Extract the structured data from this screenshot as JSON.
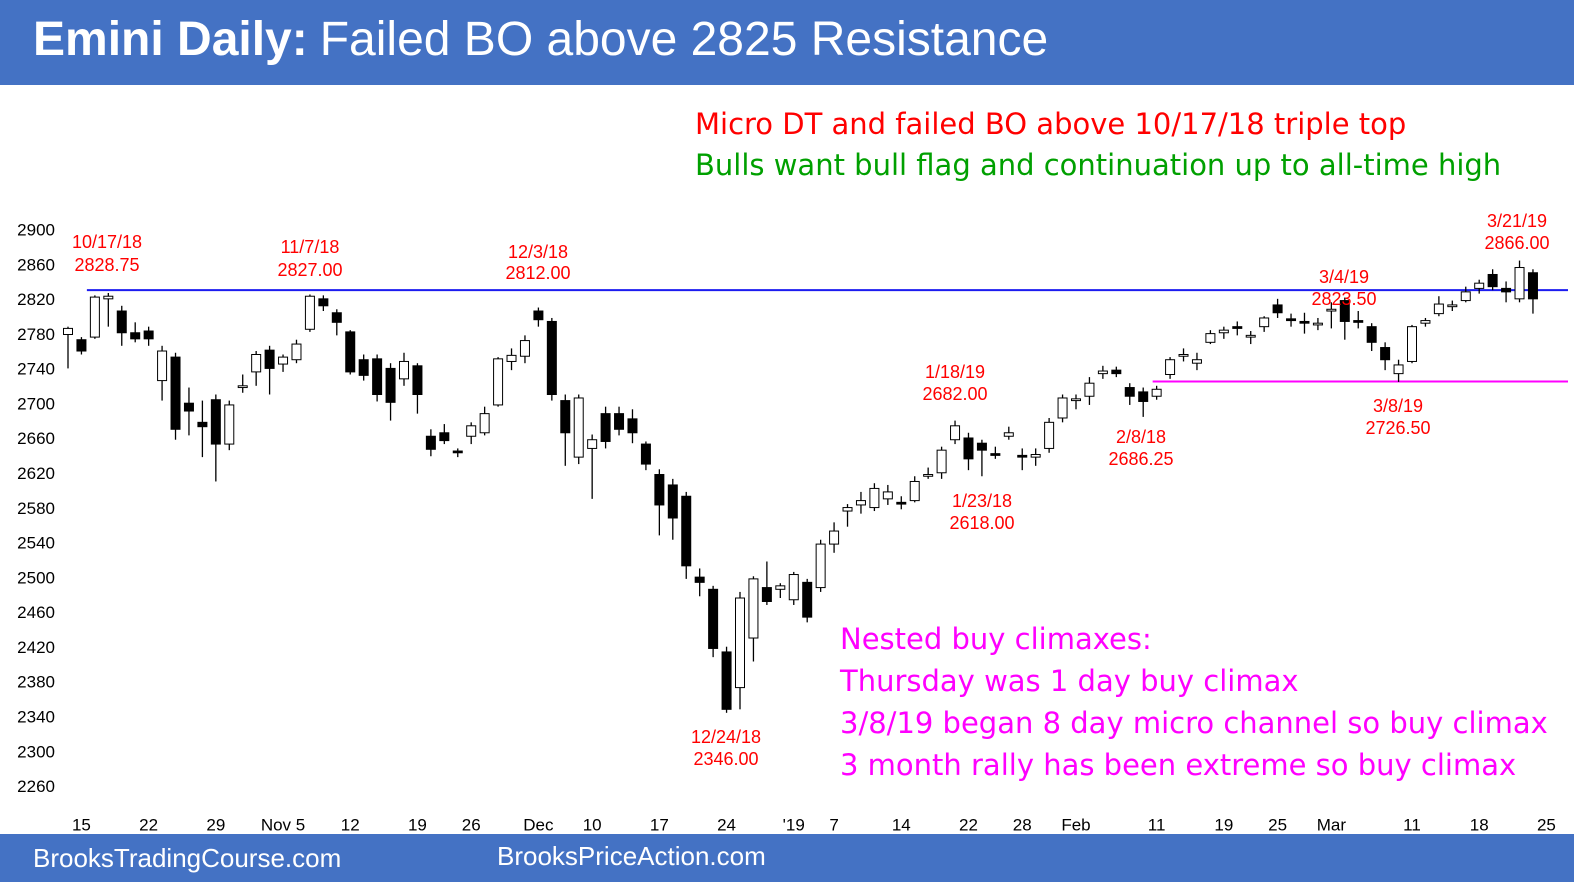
{
  "chart_data": {
    "type": "candlestick",
    "title": "Emini Daily:",
    "subtitle": "Failed BO above 2825 Resistance",
    "categories": [
      null,
      "15",
      null,
      null,
      null,
      null,
      "22",
      null,
      null,
      null,
      null,
      "29",
      null,
      null,
      null,
      null,
      "Nov 5",
      null,
      null,
      null,
      null,
      "12",
      null,
      null,
      null,
      null,
      "19",
      null,
      null,
      null,
      "26",
      null,
      null,
      null,
      null,
      "Dec",
      null,
      null,
      null,
      "10",
      null,
      null,
      null,
      null,
      "17",
      null,
      null,
      null,
      null,
      "24",
      null,
      null,
      null,
      null,
      "'19",
      null,
      null,
      "7",
      null,
      null,
      null,
      null,
      "14",
      null,
      null,
      null,
      null,
      "22",
      null,
      null,
      null,
      "28",
      null,
      null,
      null,
      "Feb",
      null,
      null,
      null,
      null,
      null,
      "11",
      null,
      null,
      null,
      null,
      "19",
      null,
      null,
      null,
      "25",
      null,
      null,
      null,
      "Mar",
      null,
      null,
      null,
      null,
      null,
      "11",
      null,
      null,
      null,
      null,
      "18",
      null,
      null,
      null,
      null,
      "25"
    ],
    "open": [
      2781,
      2775,
      2778,
      2822,
      2808,
      2783,
      2785,
      2728,
      2755,
      2702,
      2680,
      2706,
      2655,
      2720,
      2738,
      2763,
      2747,
      2752,
      2787,
      2822,
      2806,
      2784,
      2752,
      2753,
      2742,
      2730,
      2745,
      2664,
      2668,
      2647,
      2664,
      2668,
      2700,
      2750,
      2756,
      2808,
      2796,
      2705,
      2640,
      2650,
      2690,
      2690,
      2684,
      2655,
      2620,
      2608,
      2595,
      2502,
      2488,
      2416,
      2375,
      2432,
      2490,
      2488,
      2476,
      2496,
      2490,
      2540,
      2578,
      2585,
      2582,
      2592,
      2588,
      2590,
      2618,
      2622,
      2660,
      2662,
      2656,
      2644,
      2664,
      2642,
      2640,
      2650,
      2685,
      2705,
      2710,
      2736,
      2740,
      2720,
      2715,
      2710,
      2735,
      2756,
      2748,
      2772,
      2783,
      2790,
      2778,
      2790,
      2815,
      2799,
      2796,
      2792,
      2808,
      2820,
      2797,
      2790,
      2766,
      2736,
      2750,
      2794,
      2805,
      2813,
      2820,
      2834,
      2850,
      2834,
      2822,
      2852,
      null
    ],
    "high": [
      2790,
      2778,
      2826,
      2828.75,
      2814,
      2795,
      2790,
      2768,
      2760,
      2720,
      2705,
      2712,
      2705,
      2735,
      2762,
      2768,
      2758,
      2775,
      2827,
      2826,
      2810,
      2786,
      2758,
      2758,
      2748,
      2760,
      2748,
      2672,
      2678,
      2650,
      2680,
      2698,
      2755,
      2765,
      2780,
      2812,
      2800,
      2712,
      2712,
      2666,
      2698,
      2698,
      2695,
      2658,
      2626,
      2615,
      2600,
      2512,
      2492,
      2422,
      2485,
      2503,
      2520,
      2495,
      2508,
      2500,
      2545,
      2565,
      2586,
      2600,
      2610,
      2608,
      2595,
      2618,
      2628,
      2652,
      2682,
      2668,
      2660,
      2652,
      2675,
      2650,
      2650,
      2685,
      2712,
      2712,
      2732,
      2745,
      2744,
      2725,
      2720,
      2722,
      2755,
      2765,
      2760,
      2786,
      2790,
      2796,
      2785,
      2802,
      2822,
      2805,
      2806,
      2800,
      2818,
      2823.5,
      2808,
      2794,
      2772,
      2752,
      2792,
      2800,
      2825,
      2820,
      2836,
      2844,
      2856,
      2842,
      2866,
      2856,
      null
    ],
    "low": [
      2742,
      2758,
      2776,
      2790,
      2768,
      2772,
      2768,
      2705,
      2660,
      2665,
      2640,
      2612,
      2648,
      2714,
      2722,
      2712,
      2738,
      2748,
      2784,
      2808,
      2780,
      2735,
      2728,
      2704,
      2682,
      2722,
      2690,
      2641,
      2655,
      2640,
      2655,
      2665,
      2698,
      2740,
      2748,
      2790,
      2705,
      2630,
      2632,
      2592,
      2650,
      2665,
      2656,
      2625,
      2550,
      2545,
      2500,
      2480,
      2410,
      2346,
      2350,
      2405,
      2470,
      2478,
      2470,
      2450,
      2485,
      2530,
      2560,
      2575,
      2578,
      2585,
      2580,
      2588,
      2615,
      2615,
      2655,
      2625,
      2618,
      2638,
      2660,
      2625,
      2630,
      2645,
      2680,
      2695,
      2700,
      2730,
      2732,
      2700,
      2686.25,
      2706,
      2730,
      2750,
      2740,
      2770,
      2776,
      2780,
      2770,
      2784,
      2800,
      2790,
      2782,
      2786,
      2788,
      2775,
      2788,
      2762,
      2740,
      2726.5,
      2748,
      2790,
      2802,
      2808,
      2818,
      2828,
      2832,
      2818,
      2818,
      2805,
      null
    ],
    "close": [
      2788,
      2762,
      2824,
      2825,
      2783,
      2776,
      2776,
      2762,
      2672,
      2693,
      2675,
      2655,
      2700,
      2722,
      2758,
      2742,
      2755,
      2770,
      2825,
      2814,
      2795,
      2738,
      2734,
      2712,
      2703,
      2750,
      2712,
      2649,
      2659,
      2645,
      2676,
      2690,
      2753,
      2757,
      2774,
      2798,
      2712,
      2668,
      2708,
      2660,
      2658,
      2672,
      2668,
      2632,
      2585,
      2570,
      2515,
      2496,
      2420,
      2350,
      2478,
      2500,
      2474,
      2492,
      2505,
      2456,
      2540,
      2555,
      2582,
      2590,
      2604,
      2600,
      2586,
      2612,
      2620,
      2648,
      2676,
      2638,
      2648,
      2642,
      2668,
      2640,
      2643,
      2680,
      2708,
      2707,
      2725,
      2739,
      2736,
      2710,
      2704,
      2718,
      2752,
      2758,
      2752,
      2782,
      2786,
      2788,
      2780,
      2800,
      2806,
      2797,
      2794,
      2794,
      2810,
      2796,
      2795,
      2772,
      2752,
      2746,
      2790,
      2797,
      2816,
      2815,
      2830,
      2840,
      2836,
      2830,
      2858,
      2822,
      null
    ],
    "up_color": "#ffffff",
    "down_color": "#000000",
    "edge_color": "#000000",
    "ylim": [
      2240,
      2900
    ],
    "yticks": [
      2260,
      2300,
      2340,
      2380,
      2420,
      2460,
      2500,
      2540,
      2580,
      2620,
      2660,
      2700,
      2740,
      2780,
      2820,
      2860,
      2900
    ],
    "hlines": [
      {
        "value": 2832,
        "color": "#1c1cf0"
      },
      {
        "value": 2727,
        "color": "#ff00ff"
      }
    ],
    "annotations": [
      {
        "label": "10/17/18",
        "value_label": "2828.75",
        "color": "#ff0000"
      },
      {
        "label": "11/7/18",
        "value_label": "2827.00",
        "color": "#ff0000"
      },
      {
        "label": "12/3/18",
        "value_label": "2812.00",
        "color": "#ff0000"
      },
      {
        "label": "12/24/18",
        "value_label": "2346.00",
        "color": "#ff0000"
      },
      {
        "label": "1/18/19",
        "value_label": "2682.00",
        "color": "#ff0000"
      },
      {
        "label": "1/23/18",
        "value_label": "2618.00",
        "color": "#ff0000"
      },
      {
        "label": "2/8/18",
        "value_label": "2686.25",
        "color": "#ff0000"
      },
      {
        "label": "3/4/19",
        "value_label": "2823.50",
        "color": "#ff0000"
      },
      {
        "label": "3/8/19",
        "value_label": "2726.50",
        "color": "#ff0000"
      },
      {
        "label": "3/21/19",
        "value_label": "2866.00",
        "color": "#ff0000"
      }
    ],
    "notes": [
      {
        "text": "Micro DT and failed BO above 10/17/18 triple top",
        "color": "#ff0000"
      },
      {
        "text": "Bulls want bull flag and continuation up to all-time high",
        "color": "#00a000"
      },
      {
        "text": "Nested buy climaxes:",
        "color": "#ff00ff"
      },
      {
        "text": "Thursday was 1 day buy climax",
        "color": "#ff00ff"
      },
      {
        "text": "3/8/19 began 8 day micro channel so buy climax",
        "color": "#ff00ff"
      },
      {
        "text": "3 month rally has been extreme so buy climax",
        "color": "#ff00ff"
      }
    ]
  },
  "footer": {
    "left": "BrooksTradingCourse.com",
    "center": "BrooksPriceAction.com"
  }
}
